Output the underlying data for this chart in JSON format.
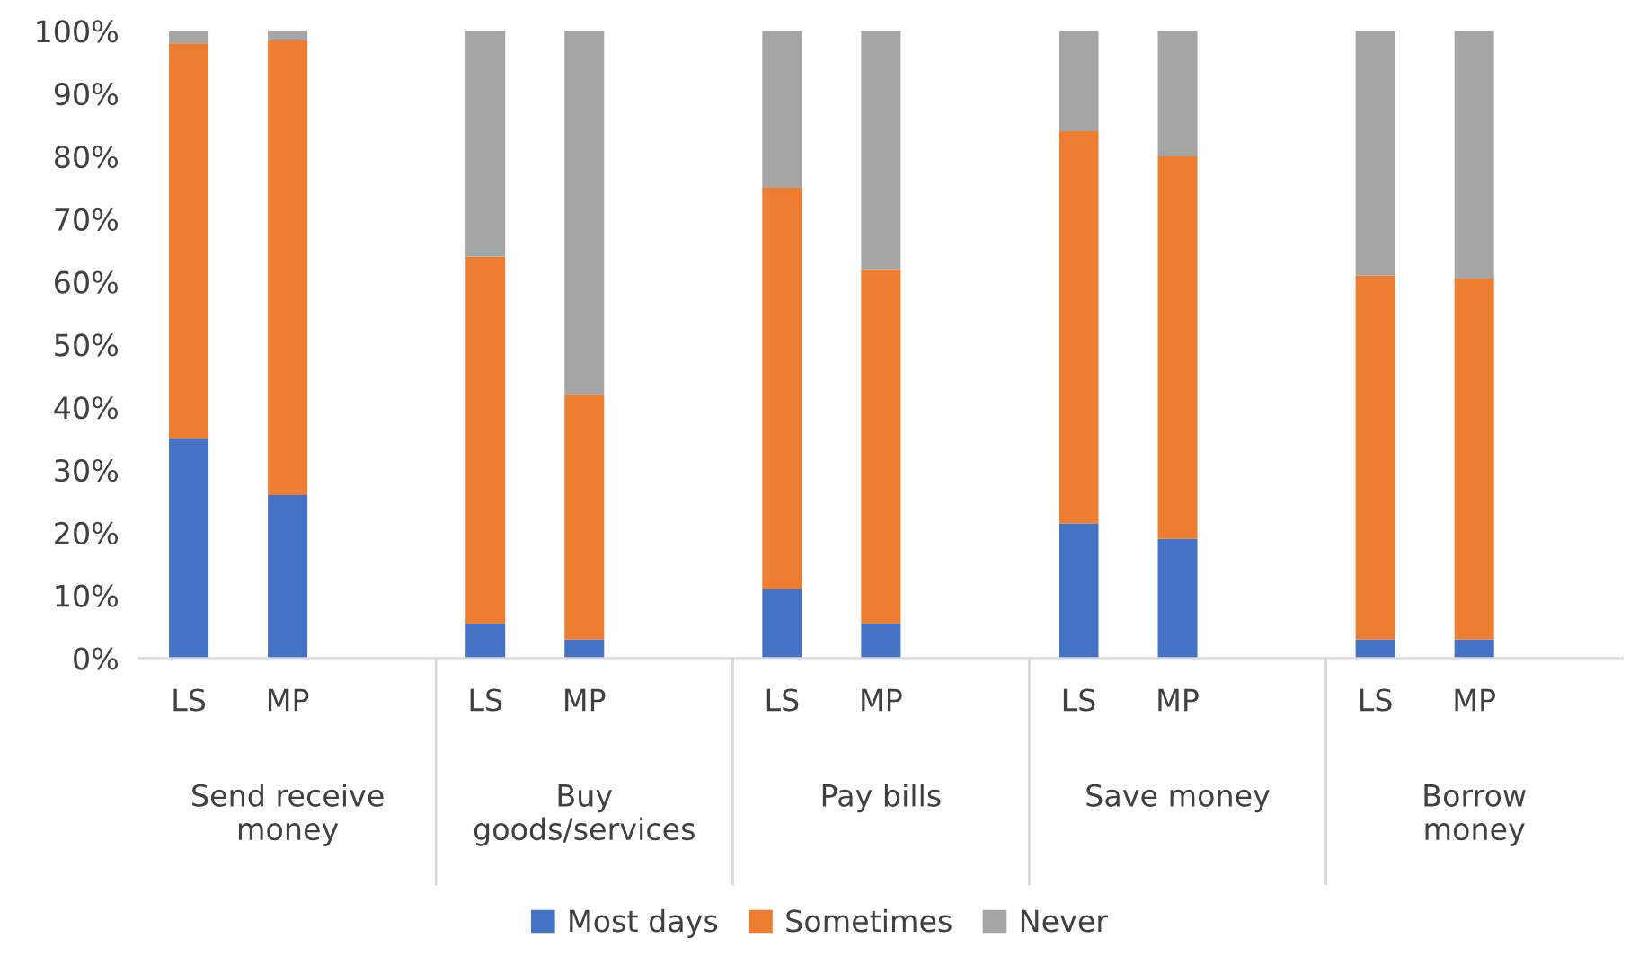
{
  "chart_data": {
    "type": "bar",
    "stacked": true,
    "categories": [
      "LS",
      "MP",
      null,
      "LS",
      "MP",
      null,
      "LS",
      "MP",
      null,
      "LS",
      "MP",
      null,
      "LS",
      "MP",
      null
    ],
    "annotations": [
      "Send receive\nmoney",
      "Buy\ngoods/services",
      "Pay bills",
      "Save money",
      "Borrow\nmoney"
    ],
    "series": [
      {
        "name": "Most days",
        "color": "#4472c4",
        "values": [
          35,
          26,
          null,
          5.5,
          3,
          null,
          11,
          5.5,
          null,
          21.5,
          19,
          null,
          3,
          3,
          null
        ]
      },
      {
        "name": "Sometimes",
        "color": "#ed7d31",
        "values": [
          63,
          72.5,
          null,
          58.5,
          39,
          null,
          64,
          56.5,
          null,
          62.5,
          61,
          null,
          58,
          57.5,
          null
        ]
      },
      {
        "name": "Never",
        "color": "#a5a5a5",
        "values": [
          2,
          1.5,
          null,
          36,
          58,
          null,
          25,
          38,
          null,
          16,
          20,
          null,
          39,
          39.5,
          null
        ]
      }
    ],
    "ylim": [
      0,
      100
    ],
    "yticks": [
      {
        "value": 0,
        "label": "0%"
      },
      {
        "value": 10,
        "label": "10%"
      },
      {
        "value": 20,
        "label": "20%"
      },
      {
        "value": 30,
        "label": "30%"
      },
      {
        "value": 40,
        "label": "40%"
      },
      {
        "value": 50,
        "label": "50%"
      },
      {
        "value": 60,
        "label": "60%"
      },
      {
        "value": 70,
        "label": "70%"
      },
      {
        "value": 80,
        "label": "80%"
      },
      {
        "value": 90,
        "label": "90%"
      },
      {
        "value": 100,
        "label": "100%"
      }
    ],
    "grid": false,
    "legend": "bottom"
  }
}
